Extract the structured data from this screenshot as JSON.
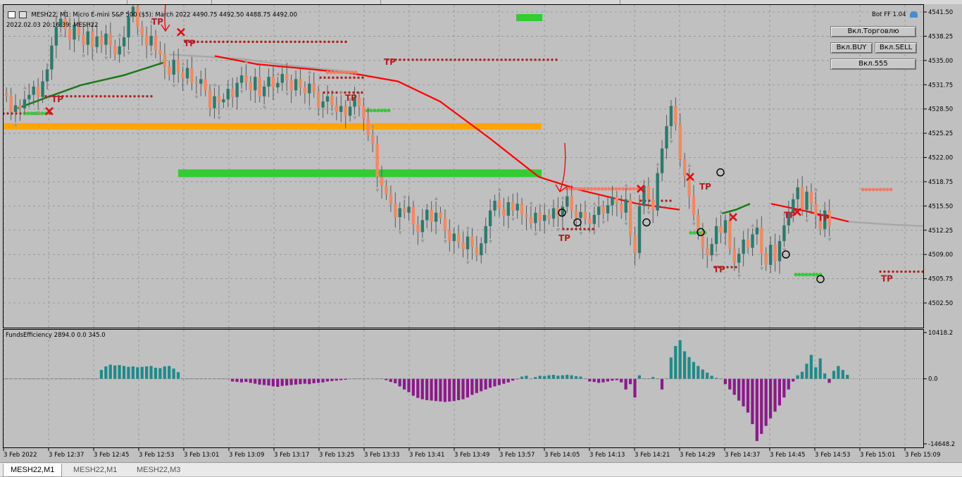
{
  "header": {
    "symbol_line": "MESH22, M1:  Micro E-mini S&P 500 ($5): March 2022   4490.75  4492.50  4488.75  4492.00",
    "datetime_line": "2022.02.03 20:16:39: MESH22",
    "bot_label": "Bot FF 1.04"
  },
  "ea_panel": {
    "trade_button": "Вкл.Торговлю",
    "buy_button": "Вкл.BUY",
    "sell_button": "Вкл.SELL",
    "p555_button": "Вкл.555"
  },
  "indicator": {
    "label": "FundsEfficiency 2894.0 0.0 345.0"
  },
  "tabs": [
    "MESH22,M1",
    "MESH22,M1",
    "MESH22,M3"
  ],
  "colors": {
    "bull": "#2c7a6e",
    "bear": "#ef8a62",
    "wick": "#5a5a5a",
    "orange_zone": "#ffa500",
    "green_zone": "#33cc33",
    "red_ma": "#ff0000",
    "green_ma": "#1a7a1a",
    "grey_ma": "#a8a8a8",
    "tp": "#b02020",
    "hist_pos": "#208a8a",
    "hist_neg": "#8b1a8b",
    "grid": "#8f8f8f"
  },
  "chart_data": [
    {
      "type": "candlestick",
      "y_ticks": [
        "4541.50",
        "4538.25",
        "4535.00",
        "4531.75",
        "4528.50",
        "4525.25",
        "4522.00",
        "4518.75",
        "4515.50",
        "4512.25",
        "4509.00",
        "4505.75",
        "4502.50"
      ],
      "ylim": [
        4499.25,
        4542.75
      ],
      "x_ticks": [
        "3 Feb 2022",
        "3 Feb 12:37",
        "3 Feb 12:45",
        "3 Feb 12:53",
        "3 Feb 13:01",
        "3 Feb 13:09",
        "3 Feb 13:17",
        "3 Feb 13:25",
        "3 Feb 13:33",
        "3 Feb 13:41",
        "3 Feb 13:49",
        "3 Feb 13:57",
        "3 Feb 14:05",
        "3 Feb 14:13",
        "3 Feb 14:21",
        "3 Feb 14:29",
        "3 Feb 14:37",
        "3 Feb 14:45",
        "3 Feb 14:53",
        "3 Feb 15:01",
        "3 Feb 15:09"
      ],
      "annotation_text": "TP",
      "closes": [
        4530.2,
        4528.1,
        4529.0,
        4528.6,
        4529.8,
        4530.4,
        4531.5,
        4530.1,
        4532.2,
        4533.8,
        4537.0,
        4539.5,
        4540.6,
        4539.2,
        4537.8,
        4539.8,
        4538.4,
        4537.1,
        4538.9,
        4536.8,
        4538.2,
        4537.1,
        4538.6,
        4537.0,
        4535.8,
        4536.9,
        4538.1,
        4540.9,
        4542.2,
        4539.5,
        4538.4,
        4537.0,
        4538.3,
        4536.4,
        4535.8,
        4534.2,
        4533.1,
        4535.1,
        4533.4,
        4532.6,
        4534.0,
        4532.1,
        4531.9,
        4532.5,
        4531.0,
        4528.6,
        4530.2,
        4529.4,
        4529.8,
        4531.2,
        4530.1,
        4532.0,
        4533.0,
        4532.1,
        4531.0,
        4532.8,
        4530.2,
        4531.5,
        4532.8,
        4531.4,
        4532.0,
        4533.2,
        4532.3,
        4531.0,
        4532.5,
        4531.4,
        4530.6,
        4531.9,
        4530.8,
        4528.7,
        4529.5,
        4530.2,
        4529.0,
        4528.1,
        4528.9,
        4527.6,
        4528.8,
        4530.0,
        4528.9,
        4527.2,
        4525.0,
        4523.8,
        4519.4,
        4518.2,
        4517.1,
        4515.8,
        4514.0,
        4515.2,
        4514.6,
        4515.4,
        4513.0,
        4512.0,
        4513.6,
        4515.0,
        4513.4,
        4514.6,
        4513.9,
        4512.2,
        4510.8,
        4511.8,
        4510.6,
        4509.7,
        4511.4,
        4510.0,
        4508.9,
        4510.5,
        4512.8,
        4514.9,
        4516.2,
        4515.1,
        4514.2,
        4516.0,
        4514.9,
        4515.8,
        4514.4,
        4514.0,
        4513.2,
        4514.6,
        4513.5,
        4514.3,
        4513.8,
        4515.2,
        4514.1,
        4515.4,
        4516.8,
        4514.9,
        4513.9,
        4514.7,
        4513.8,
        4513.1,
        4514.3,
        4515.4,
        4514.5,
        4515.6,
        4516.7,
        4515.8,
        4514.6,
        4516.4,
        4511.6,
        4509.2,
        4515.5,
        4518.2,
        4516.4,
        4514.9,
        4519.9,
        4523.2,
        4526.2,
        4528.9,
        4526.4,
        4521.8,
        4519.4,
        4516.8,
        4514.3,
        4512.1,
        4509.8,
        4508.9,
        4510.4,
        4512.8,
        4511.9,
        4513.6,
        4509.8,
        4507.9,
        4509.1,
        4511.0,
        4509.9,
        4511.7,
        4512.6,
        4509.2,
        4507.6,
        4510.3,
        4508.1,
        4510.8,
        4512.9,
        4514.7,
        4516.4,
        4518.0,
        4515.0,
        4517.4,
        4515.8,
        4514.2,
        4512.4,
        4514.9,
        4512.8
      ]
    },
    {
      "type": "histogram",
      "y_ticks": [
        "10418.2",
        "0.0",
        "-14648.2"
      ],
      "ylim": [
        -14648.2,
        10418.2
      ],
      "values": [
        0,
        0,
        0,
        0,
        0,
        0,
        0,
        0,
        0,
        0,
        0,
        0,
        0,
        0,
        0,
        0,
        0,
        0,
        0,
        0,
        0,
        2000,
        2800,
        3200,
        3000,
        3100,
        2900,
        2700,
        2800,
        2600,
        2700,
        2800,
        2900,
        2500,
        2400,
        2800,
        2900,
        2300,
        1500,
        0,
        0,
        0,
        0,
        0,
        0,
        0,
        0,
        0,
        0,
        0,
        -600,
        -700,
        -800,
        -700,
        -900,
        -1100,
        -1300,
        -1400,
        -1500,
        -1700,
        -1800,
        -1600,
        -1500,
        -1400,
        -1300,
        -1200,
        -1100,
        -1200,
        -1000,
        -900,
        -800,
        -600,
        -500,
        -400,
        -300,
        -200,
        0,
        0,
        0,
        0,
        0,
        0,
        0,
        0,
        -300,
        -700,
        -1000,
        -1700,
        -2400,
        -3000,
        -3800,
        -4300,
        -4600,
        -4800,
        -4900,
        -5000,
        -5100,
        -5200,
        -5100,
        -5000,
        -4800,
        -4600,
        -4200,
        -3600,
        -3200,
        -2800,
        -2400,
        -2000,
        -1700,
        -1400,
        -1100,
        -800,
        -400,
        -100,
        500,
        700,
        0,
        400,
        700,
        600,
        800,
        900,
        700,
        800,
        900,
        800,
        600,
        500,
        0,
        -600,
        -700,
        -900,
        -800,
        -600,
        -400,
        -300,
        -800,
        -2400,
        -1200,
        -4200,
        800,
        0,
        0,
        400,
        0,
        -2400,
        0,
        4800,
        7400,
        8700,
        6200,
        4900,
        3800,
        2900,
        2100,
        1400,
        700,
        200,
        0,
        -1200,
        -2400,
        -3600,
        -4900,
        -6200,
        -7600,
        -10200,
        -14000,
        -12400,
        -10600,
        -8900,
        -7400,
        -6000,
        -4200,
        -2400,
        -600,
        800,
        1600,
        3400,
        5400,
        2600,
        4600,
        1200,
        -900,
        1800,
        2900,
        2000,
        900
      ]
    }
  ]
}
